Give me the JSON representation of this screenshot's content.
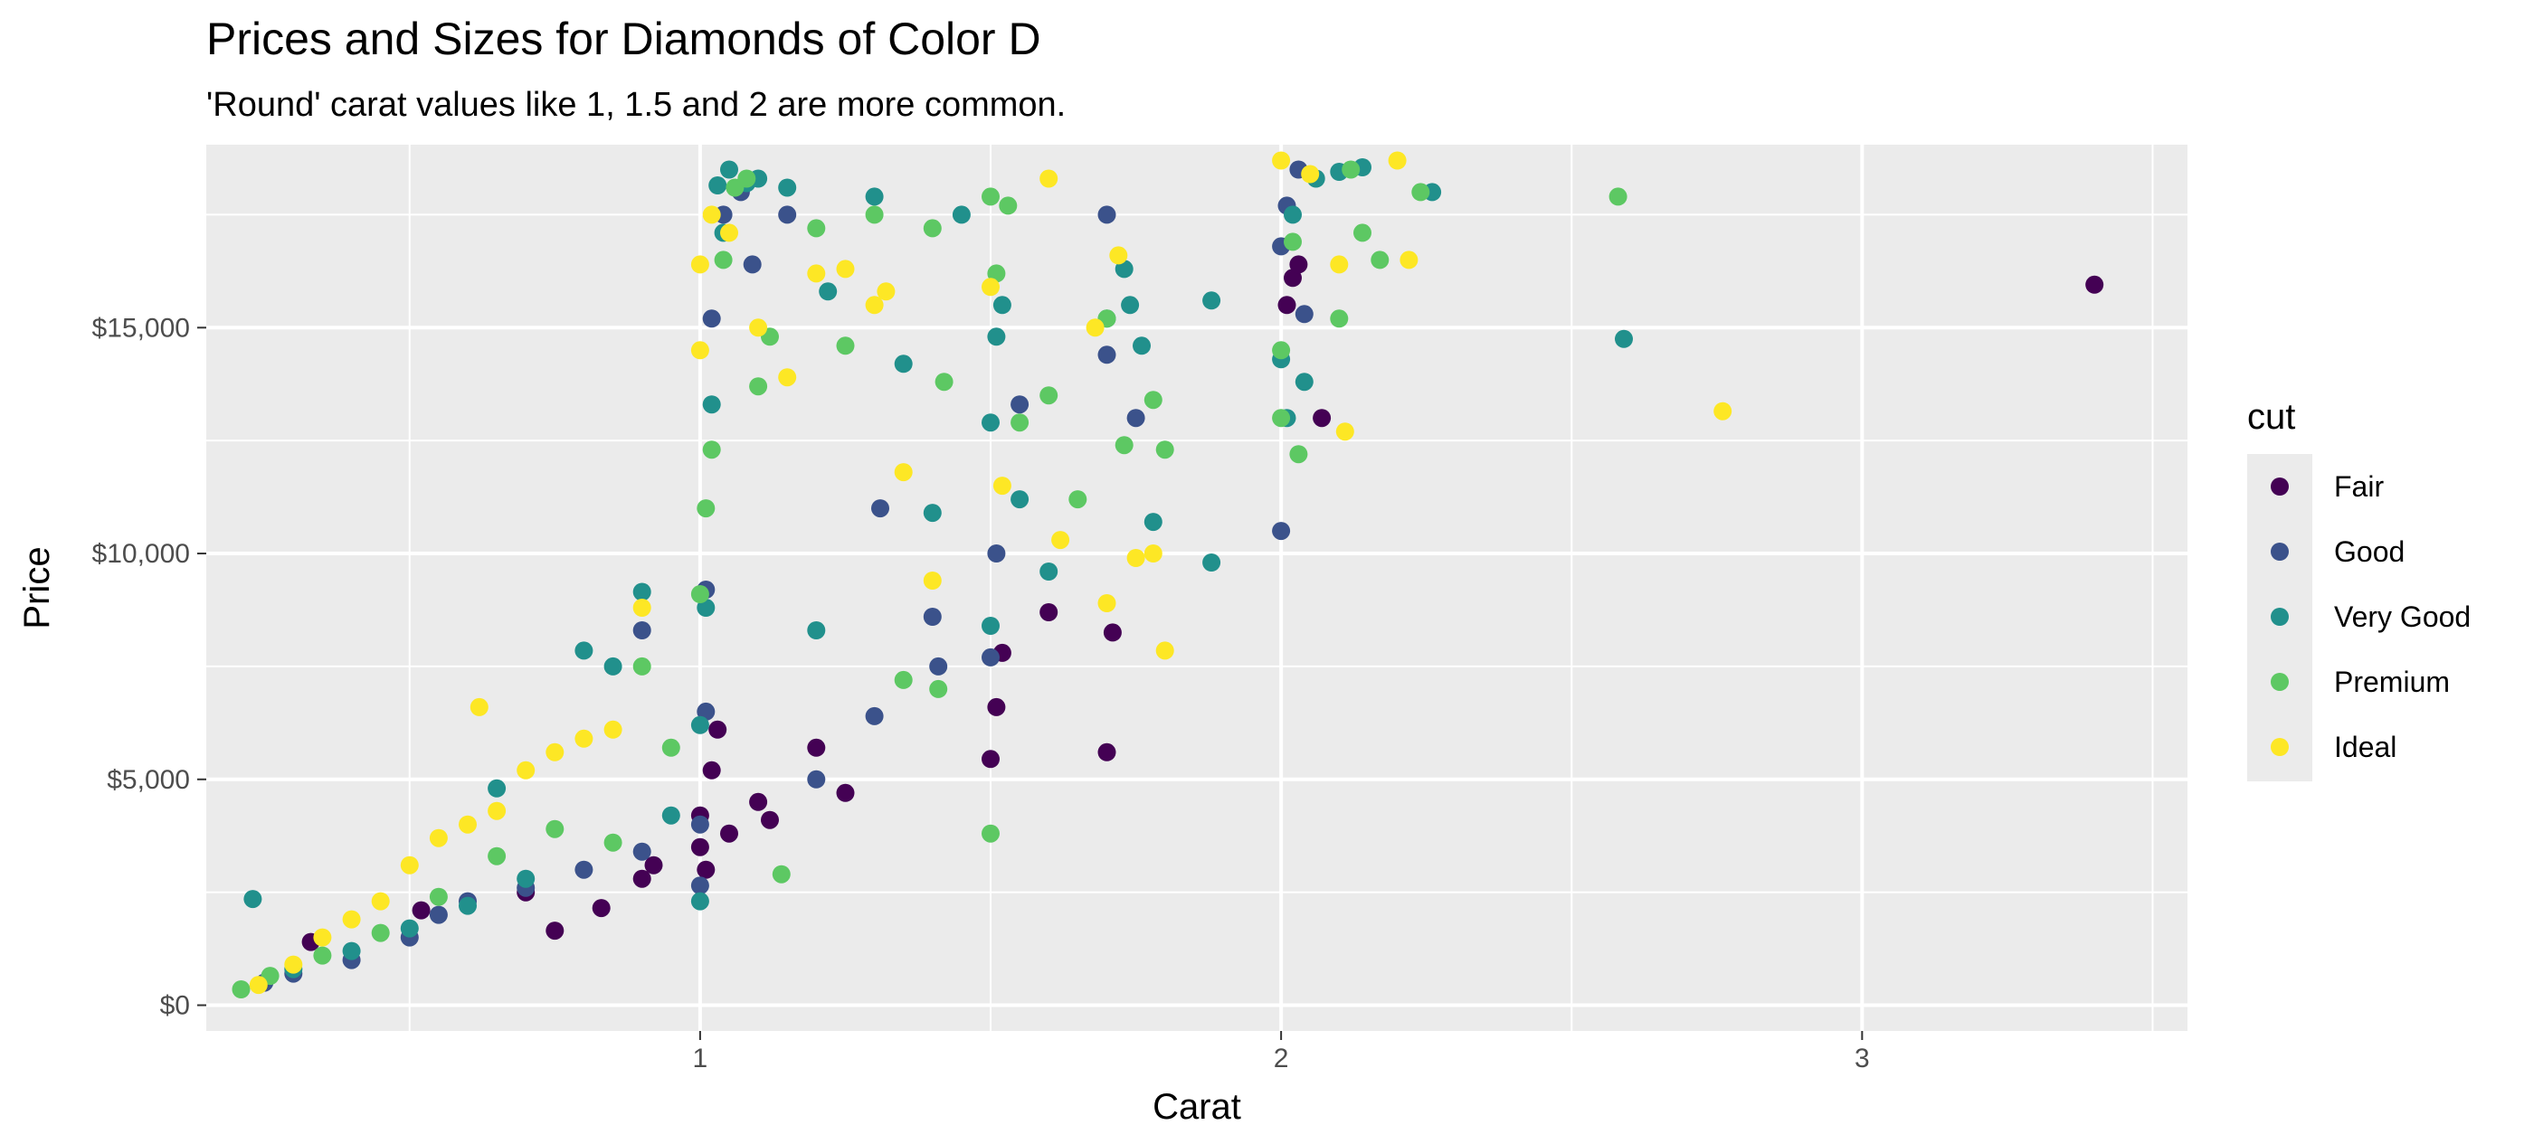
{
  "chart_data": {
    "type": "scatter",
    "title": "Prices and Sizes for Diamonds of Color D",
    "subtitle": "'Round' carat values like 1, 1.5 and 2 are more common.",
    "xlabel": "Carat",
    "ylabel": "Price",
    "xlim": [
      0.15,
      3.56
    ],
    "ylim": [
      -570,
      19050
    ],
    "x_major_ticks": [
      1,
      2,
      3
    ],
    "x_tick_labels": [
      "1",
      "2",
      "3"
    ],
    "x_minor_ticks": [
      0.5,
      1.5,
      2.5,
      3.5
    ],
    "y_major_ticks": [
      0,
      5000,
      10000,
      15000
    ],
    "y_tick_labels": [
      "$0",
      "$5,000",
      "$10,000",
      "$15,000"
    ],
    "y_minor_ticks": [
      2500,
      7500,
      12500,
      17500
    ],
    "grid": true,
    "panel_background": "#ebebeb",
    "grid_color": "#ffffff",
    "legend": {
      "title": "cut",
      "position": "right",
      "background": "#ebebeb",
      "entries": [
        {
          "label": "Fair",
          "color": "#440154"
        },
        {
          "label": "Good",
          "color": "#3b528b"
        },
        {
          "label": "Very Good",
          "color": "#21908c"
        },
        {
          "label": "Premium",
          "color": "#5dc863"
        },
        {
          "label": "Ideal",
          "color": "#fde725"
        }
      ]
    },
    "series": [
      {
        "name": "Fair",
        "color": "#440154",
        "points": [
          [
            0.33,
            1400
          ],
          [
            0.52,
            2100
          ],
          [
            0.7,
            2500
          ],
          [
            0.75,
            1650
          ],
          [
            0.83,
            2150
          ],
          [
            0.9,
            2800
          ],
          [
            0.92,
            3100
          ],
          [
            1.0,
            3500
          ],
          [
            1.0,
            4200
          ],
          [
            1.01,
            3000
          ],
          [
            1.02,
            5200
          ],
          [
            1.03,
            6100
          ],
          [
            1.05,
            3800
          ],
          [
            1.1,
            4500
          ],
          [
            1.12,
            4100
          ],
          [
            1.2,
            5700
          ],
          [
            1.25,
            4700
          ],
          [
            1.5,
            5450
          ],
          [
            1.51,
            6600
          ],
          [
            1.52,
            7800
          ],
          [
            1.6,
            8700
          ],
          [
            1.7,
            5600
          ],
          [
            1.71,
            8250
          ],
          [
            2.01,
            15500
          ],
          [
            2.02,
            16100
          ],
          [
            2.03,
            16400
          ],
          [
            2.07,
            13000
          ],
          [
            3.4,
            15950
          ]
        ]
      },
      {
        "name": "Good",
        "color": "#3b528b",
        "points": [
          [
            0.25,
            500
          ],
          [
            0.3,
            700
          ],
          [
            0.4,
            1000
          ],
          [
            0.5,
            1500
          ],
          [
            0.55,
            2000
          ],
          [
            0.6,
            2300
          ],
          [
            0.7,
            2600
          ],
          [
            0.8,
            3000
          ],
          [
            0.9,
            3400
          ],
          [
            0.9,
            8300
          ],
          [
            1.0,
            2650
          ],
          [
            1.0,
            4000
          ],
          [
            1.01,
            6500
          ],
          [
            1.01,
            9200
          ],
          [
            1.02,
            15200
          ],
          [
            1.04,
            17500
          ],
          [
            1.07,
            18000
          ],
          [
            1.09,
            16400
          ],
          [
            1.15,
            17500
          ],
          [
            1.2,
            5000
          ],
          [
            1.3,
            6400
          ],
          [
            1.31,
            11000
          ],
          [
            1.4,
            8600
          ],
          [
            1.41,
            7500
          ],
          [
            1.5,
            7700
          ],
          [
            1.51,
            10000
          ],
          [
            1.55,
            13300
          ],
          [
            1.7,
            17500
          ],
          [
            1.7,
            14400
          ],
          [
            1.75,
            13000
          ],
          [
            2.0,
            10500
          ],
          [
            2.0,
            16800
          ],
          [
            2.01,
            17700
          ],
          [
            2.03,
            18500
          ],
          [
            2.04,
            15300
          ]
        ]
      },
      {
        "name": "Very Good",
        "color": "#21908c",
        "points": [
          [
            0.23,
            2350
          ],
          [
            0.3,
            800
          ],
          [
            0.4,
            1200
          ],
          [
            0.5,
            1700
          ],
          [
            0.6,
            2200
          ],
          [
            0.65,
            4800
          ],
          [
            0.7,
            2800
          ],
          [
            0.8,
            7850
          ],
          [
            0.85,
            7500
          ],
          [
            0.9,
            9150
          ],
          [
            0.95,
            4200
          ],
          [
            1.0,
            2300
          ],
          [
            1.0,
            6200
          ],
          [
            1.01,
            8800
          ],
          [
            1.02,
            13300
          ],
          [
            1.03,
            18150
          ],
          [
            1.04,
            17100
          ],
          [
            1.05,
            18500
          ],
          [
            1.08,
            18200
          ],
          [
            1.1,
            18300
          ],
          [
            1.15,
            18100
          ],
          [
            1.2,
            8300
          ],
          [
            1.22,
            15800
          ],
          [
            1.3,
            17900
          ],
          [
            1.35,
            14200
          ],
          [
            1.4,
            10900
          ],
          [
            1.45,
            17500
          ],
          [
            1.5,
            8400
          ],
          [
            1.5,
            12900
          ],
          [
            1.51,
            14800
          ],
          [
            1.52,
            15500
          ],
          [
            1.55,
            11200
          ],
          [
            1.6,
            9600
          ],
          [
            1.7,
            15200
          ],
          [
            1.73,
            16300
          ],
          [
            1.74,
            15500
          ],
          [
            1.76,
            14600
          ],
          [
            1.78,
            10700
          ],
          [
            1.88,
            15600
          ],
          [
            1.88,
            9800
          ],
          [
            2.0,
            14300
          ],
          [
            2.01,
            13000
          ],
          [
            2.02,
            17500
          ],
          [
            2.04,
            13800
          ],
          [
            2.06,
            18300
          ],
          [
            2.1,
            18450
          ],
          [
            2.14,
            18550
          ],
          [
            2.26,
            18000
          ],
          [
            2.59,
            14750
          ]
        ]
      },
      {
        "name": "Premium",
        "color": "#5dc863",
        "points": [
          [
            0.21,
            350
          ],
          [
            0.26,
            650
          ],
          [
            0.35,
            1100
          ],
          [
            0.45,
            1600
          ],
          [
            0.55,
            2400
          ],
          [
            0.65,
            3300
          ],
          [
            0.75,
            3900
          ],
          [
            0.85,
            3600
          ],
          [
            0.9,
            7500
          ],
          [
            0.95,
            5700
          ],
          [
            1.0,
            9100
          ],
          [
            1.01,
            11000
          ],
          [
            1.02,
            12300
          ],
          [
            1.04,
            16500
          ],
          [
            1.06,
            18100
          ],
          [
            1.08,
            18300
          ],
          [
            1.1,
            13700
          ],
          [
            1.12,
            14800
          ],
          [
            1.14,
            2900
          ],
          [
            1.2,
            17200
          ],
          [
            1.25,
            14600
          ],
          [
            1.3,
            17500
          ],
          [
            1.35,
            7200
          ],
          [
            1.4,
            17200
          ],
          [
            1.41,
            7000
          ],
          [
            1.42,
            13800
          ],
          [
            1.5,
            3800
          ],
          [
            1.5,
            17900
          ],
          [
            1.51,
            16200
          ],
          [
            1.53,
            17700
          ],
          [
            1.55,
            12900
          ],
          [
            1.6,
            13500
          ],
          [
            1.65,
            11200
          ],
          [
            1.7,
            15200
          ],
          [
            1.73,
            12400
          ],
          [
            1.78,
            13400
          ],
          [
            1.8,
            12300
          ],
          [
            2.0,
            13000
          ],
          [
            2.0,
            14500
          ],
          [
            2.02,
            16900
          ],
          [
            2.03,
            12200
          ],
          [
            2.1,
            15200
          ],
          [
            2.12,
            18500
          ],
          [
            2.14,
            17100
          ],
          [
            2.17,
            16500
          ],
          [
            2.24,
            18000
          ],
          [
            2.58,
            17900
          ]
        ]
      },
      {
        "name": "Ideal",
        "color": "#fde725",
        "points": [
          [
            0.24,
            450
          ],
          [
            0.3,
            900
          ],
          [
            0.35,
            1500
          ],
          [
            0.4,
            1900
          ],
          [
            0.45,
            2300
          ],
          [
            0.5,
            3100
          ],
          [
            0.55,
            3700
          ],
          [
            0.6,
            4000
          ],
          [
            0.62,
            6600
          ],
          [
            0.65,
            4300
          ],
          [
            0.7,
            5200
          ],
          [
            0.75,
            5600
          ],
          [
            0.8,
            5900
          ],
          [
            0.85,
            6100
          ],
          [
            0.9,
            8800
          ],
          [
            1.0,
            14500
          ],
          [
            1.0,
            16400
          ],
          [
            1.02,
            17500
          ],
          [
            1.05,
            17100
          ],
          [
            1.1,
            15000
          ],
          [
            1.15,
            13900
          ],
          [
            1.2,
            16200
          ],
          [
            1.25,
            16300
          ],
          [
            1.3,
            15500
          ],
          [
            1.32,
            15800
          ],
          [
            1.35,
            11800
          ],
          [
            1.4,
            9400
          ],
          [
            1.5,
            15900
          ],
          [
            1.52,
            11500
          ],
          [
            1.6,
            18300
          ],
          [
            1.62,
            10300
          ],
          [
            1.68,
            15000
          ],
          [
            1.7,
            8900
          ],
          [
            1.72,
            16600
          ],
          [
            1.75,
            9900
          ],
          [
            1.78,
            10000
          ],
          [
            1.8,
            7850
          ],
          [
            2.0,
            18700
          ],
          [
            2.05,
            18400
          ],
          [
            2.1,
            16400
          ],
          [
            2.11,
            12700
          ],
          [
            2.2,
            18700
          ],
          [
            2.22,
            16500
          ],
          [
            2.76,
            13150
          ]
        ]
      }
    ]
  }
}
